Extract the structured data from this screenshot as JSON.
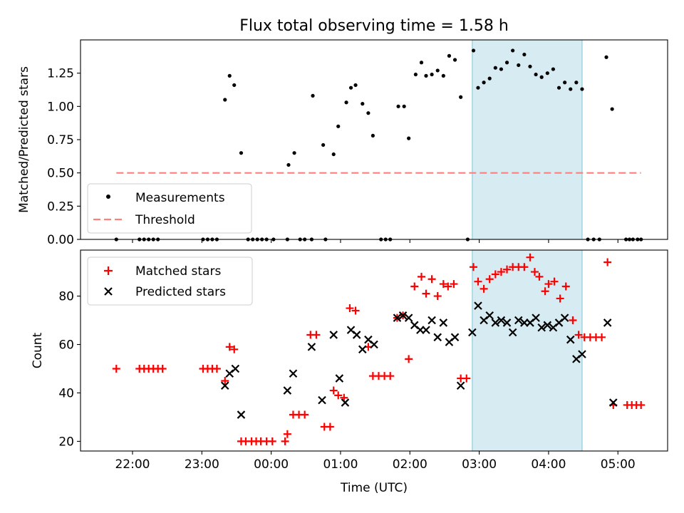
{
  "title": "Flux total observing time = 1.58 h",
  "xlabel": "Time (UTC)",
  "x_ticks": [
    "22:00",
    "23:00",
    "00:00",
    "01:00",
    "02:00",
    "03:00",
    "04:00",
    "05:00"
  ],
  "colors": {
    "measurements": "#000000",
    "threshold": "#ff7f7f",
    "matched": "#ff0000",
    "predicted": "#000000",
    "highlight": "#add8e6"
  },
  "chart_data": [
    {
      "type": "scatter",
      "ylabel": "Matched/Predicted stars",
      "xlim": [
        "21:15",
        "05:43"
      ],
      "ylim": [
        0,
        1.5
      ],
      "y_ticks": [
        "0.00",
        "0.25",
        "0.50",
        "0.75",
        "1.00",
        "1.25"
      ],
      "legend_position": "lower-left",
      "highlight_span": [
        "02:54",
        "04:29"
      ],
      "threshold": {
        "name": "Threshold",
        "value": 0.5,
        "x": [
          "21:46",
          "05:20"
        ]
      },
      "series": [
        {
          "name": "Measurements",
          "points": [
            [
              "21:46",
              0
            ],
            [
              "22:06",
              0
            ],
            [
              "22:10",
              0
            ],
            [
              "22:14",
              0
            ],
            [
              "22:18",
              0
            ],
            [
              "22:22",
              0
            ],
            [
              "23:01",
              0
            ],
            [
              "23:05",
              0
            ],
            [
              "23:09",
              0
            ],
            [
              "23:13",
              0
            ],
            [
              "23:20",
              1.05
            ],
            [
              "23:24",
              1.23
            ],
            [
              "23:28",
              1.16
            ],
            [
              "23:34",
              0.65
            ],
            [
              "23:40",
              0
            ],
            [
              "23:44",
              0
            ],
            [
              "23:48",
              0
            ],
            [
              "23:52",
              0
            ],
            [
              "23:56",
              0
            ],
            [
              "00:02",
              0
            ],
            [
              "00:14",
              0
            ],
            [
              "00:15",
              0.56
            ],
            [
              "00:20",
              0.65
            ],
            [
              "00:25",
              0
            ],
            [
              "00:29",
              0
            ],
            [
              "00:35",
              0
            ],
            [
              "00:36",
              1.08
            ],
            [
              "00:45",
              0.71
            ],
            [
              "00:47",
              0
            ],
            [
              "00:54",
              0.64
            ],
            [
              "00:58",
              0.85
            ],
            [
              "01:05",
              1.03
            ],
            [
              "01:09",
              1.14
            ],
            [
              "01:13",
              1.16
            ],
            [
              "01:19",
              1.02
            ],
            [
              "01:24",
              0.95
            ],
            [
              "01:28",
              0.78
            ],
            [
              "01:35",
              0
            ],
            [
              "01:39",
              0
            ],
            [
              "01:43",
              0
            ],
            [
              "01:50",
              1.0
            ],
            [
              "01:55",
              1.0
            ],
            [
              "01:59",
              0.76
            ],
            [
              "02:05",
              1.24
            ],
            [
              "02:10",
              1.33
            ],
            [
              "02:14",
              1.23
            ],
            [
              "02:19",
              1.24
            ],
            [
              "02:24",
              1.27
            ],
            [
              "02:29",
              1.23
            ],
            [
              "02:34",
              1.38
            ],
            [
              "02:39",
              1.35
            ],
            [
              "02:44",
              1.07
            ],
            [
              "02:50",
              0
            ],
            [
              "02:55",
              1.42
            ],
            [
              "02:59",
              1.14
            ],
            [
              "03:04",
              1.18
            ],
            [
              "03:09",
              1.21
            ],
            [
              "03:14",
              1.29
            ],
            [
              "03:19",
              1.28
            ],
            [
              "03:24",
              1.33
            ],
            [
              "03:29",
              1.42
            ],
            [
              "03:34",
              1.31
            ],
            [
              "03:39",
              1.39
            ],
            [
              "03:44",
              1.3
            ],
            [
              "03:49",
              1.24
            ],
            [
              "03:54",
              1.22
            ],
            [
              "03:59",
              1.25
            ],
            [
              "04:04",
              1.28
            ],
            [
              "04:09",
              1.14
            ],
            [
              "04:14",
              1.18
            ],
            [
              "04:19",
              1.13
            ],
            [
              "04:24",
              1.18
            ],
            [
              "04:29",
              1.13
            ],
            [
              "04:34",
              0
            ],
            [
              "04:39",
              0
            ],
            [
              "04:44",
              0
            ],
            [
              "04:50",
              1.37
            ],
            [
              "04:55",
              0.98
            ],
            [
              "05:07",
              0
            ],
            [
              "05:10",
              0
            ],
            [
              "05:13",
              0
            ],
            [
              "05:17",
              0
            ],
            [
              "05:20",
              0
            ]
          ]
        }
      ]
    },
    {
      "type": "scatter",
      "ylabel": "Count",
      "xlim": [
        "21:15",
        "05:43"
      ],
      "ylim": [
        16,
        99
      ],
      "y_ticks": [
        "20",
        "40",
        "60",
        "80"
      ],
      "legend_position": "upper-left",
      "highlight_span": [
        "02:54",
        "04:29"
      ],
      "series": [
        {
          "name": "Matched stars",
          "marker": "plus",
          "points": [
            [
              "21:46",
              50
            ],
            [
              "22:06",
              50
            ],
            [
              "22:10",
              50
            ],
            [
              "22:14",
              50
            ],
            [
              "22:18",
              50
            ],
            [
              "22:22",
              50
            ],
            [
              "22:26",
              50
            ],
            [
              "23:01",
              50
            ],
            [
              "23:05",
              50
            ],
            [
              "23:09",
              50
            ],
            [
              "23:13",
              50
            ],
            [
              "23:20",
              45
            ],
            [
              "23:24",
              59
            ],
            [
              "23:28",
              58
            ],
            [
              "23:34",
              20
            ],
            [
              "23:38",
              20
            ],
            [
              "23:43",
              20
            ],
            [
              "23:47",
              20
            ],
            [
              "23:51",
              20
            ],
            [
              "23:56",
              20
            ],
            [
              "24:01",
              20
            ],
            [
              "24:12",
              20
            ],
            [
              "24:14",
              23
            ],
            [
              "24:19",
              31
            ],
            [
              "24:24",
              31
            ],
            [
              "24:29",
              31
            ],
            [
              "24:34",
              64
            ],
            [
              "24:39",
              64
            ],
            [
              "24:46",
              26
            ],
            [
              "24:51",
              26
            ],
            [
              "24:54",
              41
            ],
            [
              "24:58",
              39
            ],
            [
              "25:03",
              38
            ],
            [
              "25:08",
              75
            ],
            [
              "25:13",
              74
            ],
            [
              "25:24",
              59
            ],
            [
              "25:28",
              47
            ],
            [
              "25:33",
              47
            ],
            [
              "25:38",
              47
            ],
            [
              "25:43",
              47
            ],
            [
              "25:49",
              71
            ],
            [
              "25:54",
              72
            ],
            [
              "25:59",
              54
            ],
            [
              "26:04",
              84
            ],
            [
              "26:10",
              88
            ],
            [
              "26:14",
              81
            ],
            [
              "26:19",
              87
            ],
            [
              "26:24",
              80
            ],
            [
              "26:29",
              85
            ],
            [
              "26:33",
              84
            ],
            [
              "26:38",
              85
            ],
            [
              "26:44",
              46
            ],
            [
              "26:49",
              46
            ],
            [
              "26:55",
              92
            ],
            [
              "26:59",
              86
            ],
            [
              "27:04",
              83
            ],
            [
              "27:09",
              87
            ],
            [
              "27:14",
              89
            ],
            [
              "27:19",
              90
            ],
            [
              "27:24",
              91
            ],
            [
              "27:29",
              92
            ],
            [
              "27:34",
              92
            ],
            [
              "27:39",
              92
            ],
            [
              "27:44",
              96
            ],
            [
              "27:48",
              90
            ],
            [
              "27:52",
              88
            ],
            [
              "27:57",
              82
            ],
            [
              "28:00",
              85
            ],
            [
              "28:05",
              86
            ],
            [
              "28:10",
              79
            ],
            [
              "28:15",
              84
            ],
            [
              "28:21",
              70
            ],
            [
              "28:26",
              64
            ],
            [
              "28:31",
              63
            ],
            [
              "28:36",
              63
            ],
            [
              "28:41",
              63
            ],
            [
              "28:46",
              63
            ],
            [
              "28:51",
              94
            ],
            [
              "28:56",
              35
            ],
            [
              "29:08",
              35
            ],
            [
              "29:12",
              35
            ],
            [
              "29:16",
              35
            ],
            [
              "29:20",
              35
            ]
          ]
        },
        {
          "name": "Predicted stars",
          "marker": "x",
          "points": [
            [
              "23:20",
              43
            ],
            [
              "23:24",
              48
            ],
            [
              "23:29",
              50
            ],
            [
              "23:34",
              31
            ],
            [
              "24:14",
              41
            ],
            [
              "24:19",
              48
            ],
            [
              "24:35",
              59
            ],
            [
              "24:44",
              37
            ],
            [
              "24:54",
              64
            ],
            [
              "24:59",
              46
            ],
            [
              "25:04",
              36
            ],
            [
              "25:09",
              66
            ],
            [
              "25:14",
              64
            ],
            [
              "25:19",
              58
            ],
            [
              "25:24",
              62
            ],
            [
              "25:29",
              60
            ],
            [
              "25:49",
              71
            ],
            [
              "25:54",
              72
            ],
            [
              "25:59",
              71
            ],
            [
              "26:04",
              68
            ],
            [
              "26:09",
              66
            ],
            [
              "26:14",
              66
            ],
            [
              "26:19",
              70
            ],
            [
              "26:24",
              63
            ],
            [
              "26:29",
              69
            ],
            [
              "26:34",
              61
            ],
            [
              "26:39",
              63
            ],
            [
              "26:44",
              43
            ],
            [
              "26:54",
              65
            ],
            [
              "26:59",
              76
            ],
            [
              "27:04",
              70
            ],
            [
              "27:09",
              72
            ],
            [
              "27:14",
              69
            ],
            [
              "27:19",
              70
            ],
            [
              "27:24",
              69
            ],
            [
              "27:29",
              65
            ],
            [
              "27:34",
              70
            ],
            [
              "27:39",
              69
            ],
            [
              "27:44",
              69
            ],
            [
              "27:49",
              71
            ],
            [
              "27:54",
              67
            ],
            [
              "27:59",
              68
            ],
            [
              "28:04",
              67
            ],
            [
              "28:09",
              69
            ],
            [
              "28:14",
              71
            ],
            [
              "28:19",
              62
            ],
            [
              "28:24",
              54
            ],
            [
              "28:29",
              56
            ],
            [
              "28:51",
              69
            ],
            [
              "28:56",
              36
            ]
          ]
        }
      ]
    }
  ]
}
